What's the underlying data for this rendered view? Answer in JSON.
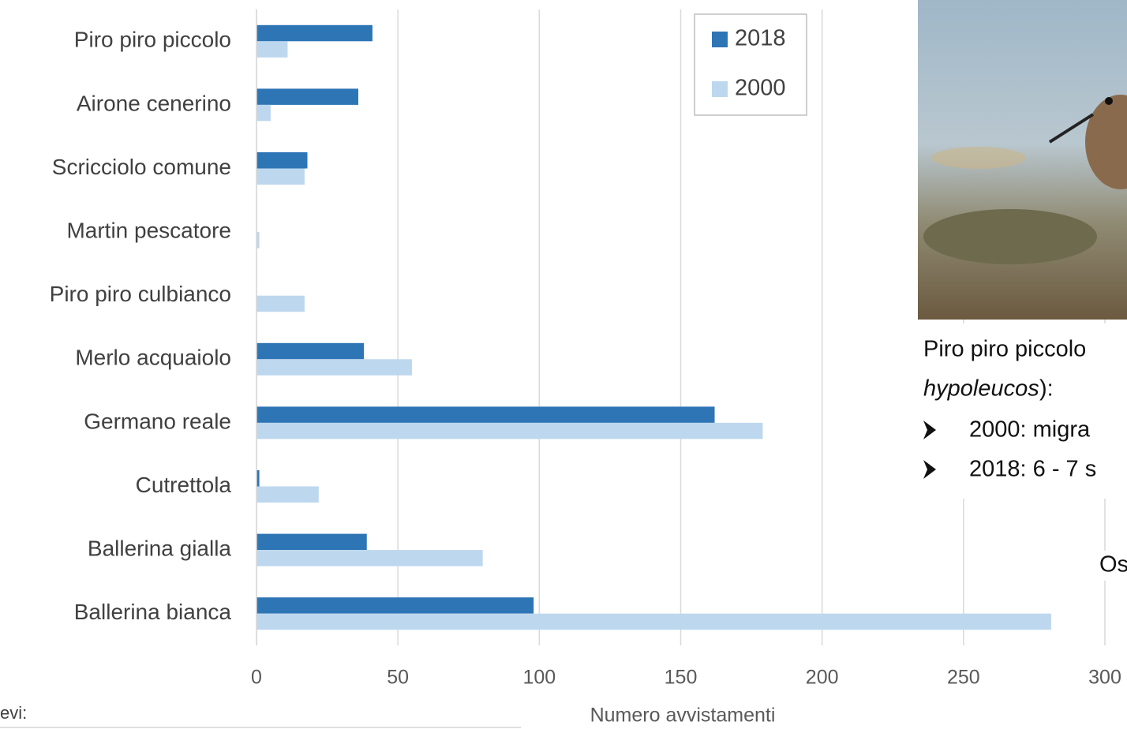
{
  "chart_data": {
    "type": "hbar",
    "x_label": "Numero avvistamenti",
    "categories": [
      "Piro piro piccolo",
      "Airone cenerino",
      "Scricciolo comune",
      "Martin pescatore",
      "Piro piro culbianco",
      "Merlo acquaiolo",
      "Germano reale",
      "Cutrettola",
      "Ballerina gialla",
      "Ballerina bianca"
    ],
    "series": [
      {
        "name": "2018",
        "color": "#2e75b6",
        "values": [
          41,
          36,
          18,
          0,
          0,
          38,
          162,
          1,
          39,
          98
        ]
      },
      {
        "name": "2000",
        "color": "#bdd7ee",
        "values": [
          11,
          5,
          17,
          1,
          17,
          55,
          179,
          22,
          80,
          281
        ]
      }
    ],
    "xlim": [
      0,
      300
    ],
    "xticks": [
      0,
      50,
      100,
      150,
      200,
      250,
      300
    ],
    "grid": true,
    "legend": "top-right"
  },
  "side_panel": {
    "caption": "Piro piro piccolo",
    "species_italic": "hypoleucos",
    "species_end": "):",
    "bullets": [
      "2000: migra",
      "2018: 6 - 7 s"
    ],
    "note": "Os"
  },
  "footer": "evi:"
}
